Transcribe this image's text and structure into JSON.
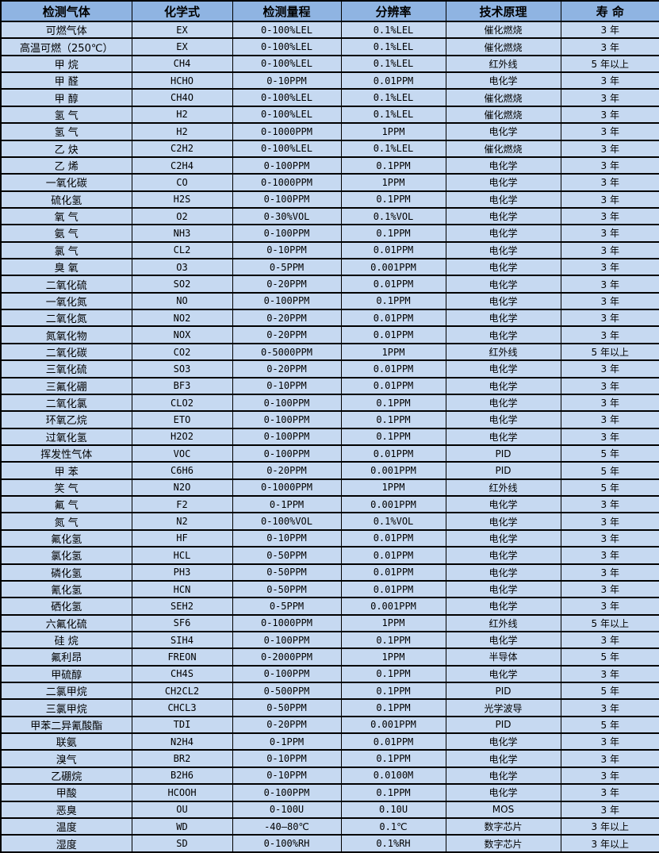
{
  "table": {
    "columns": [
      "检测气体",
      "化学式",
      "检测量程",
      "分辨率",
      "技术原理",
      "寿 命"
    ],
    "column_keys": [
      "gas-name",
      "formula",
      "range",
      "resolution",
      "principle",
      "lifespan"
    ],
    "rows": [
      [
        "可燃气体",
        "EX",
        "0-100%LEL",
        "0.1%LEL",
        "催化燃烧",
        "3 年"
      ],
      [
        "高温可燃（250℃）",
        "EX",
        "0-100%LEL",
        "0.1%LEL",
        "催化燃烧",
        "3 年"
      ],
      [
        "甲 烷",
        "CH4",
        "0-100%LEL",
        "0.1%LEL",
        "红外线",
        "5 年以上"
      ],
      [
        "甲 醛",
        "HCHO",
        "0-10PPM",
        "0.01PPM",
        "电化学",
        "3 年"
      ],
      [
        "甲 醇",
        "CH4O",
        "0-100%LEL",
        "0.1%LEL",
        "催化燃烧",
        "3 年"
      ],
      [
        "氢 气",
        "H2",
        "0-100%LEL",
        "0.1%LEL",
        "催化燃烧",
        "3 年"
      ],
      [
        "氢 气",
        "H2",
        "0-1000PPM",
        "1PPM",
        "电化学",
        "3 年"
      ],
      [
        "乙 炔",
        "C2H2",
        "0-100%LEL",
        "0.1%LEL",
        "催化燃烧",
        "3 年"
      ],
      [
        "乙 烯",
        "C2H4",
        "0-100PPM",
        "0.1PPM",
        "电化学",
        "3 年"
      ],
      [
        "一氧化碳",
        "CO",
        "0-1000PPM",
        "1PPM",
        "电化学",
        "3 年"
      ],
      [
        "硫化氢",
        "H2S",
        "0-100PPM",
        "0.1PPM",
        "电化学",
        "3 年"
      ],
      [
        "氧 气",
        "O2",
        "0-30%VOL",
        "0.1%VOL",
        "电化学",
        "3 年"
      ],
      [
        "氨 气",
        "NH3",
        "0-100PPM",
        "0.1PPM",
        "电化学",
        "3 年"
      ],
      [
        "氯 气",
        "CL2",
        "0-10PPM",
        "0.01PPM",
        "电化学",
        "3 年"
      ],
      [
        "臭 氧",
        "O3",
        "0-5PPM",
        "0.001PPM",
        "电化学",
        "3 年"
      ],
      [
        "二氧化硫",
        "SO2",
        "0-20PPM",
        "0.01PPM",
        "电化学",
        "3 年"
      ],
      [
        "一氧化氮",
        "NO",
        "0-100PPM",
        "0.1PPM",
        "电化学",
        "3 年"
      ],
      [
        "二氧化氮",
        "NO2",
        "0-20PPM",
        "0.01PPM",
        "电化学",
        "3 年"
      ],
      [
        "氮氧化物",
        "NOX",
        "0-20PPM",
        "0.01PPM",
        "电化学",
        "3 年"
      ],
      [
        "二氧化碳",
        "CO2",
        "0-5000PPM",
        "1PPM",
        "红外线",
        "5 年以上"
      ],
      [
        "三氧化硫",
        "SO3",
        "0-20PPM",
        "0.01PPM",
        "电化学",
        "3 年"
      ],
      [
        "三氟化硼",
        "BF3",
        "0-10PPM",
        "0.01PPM",
        "电化学",
        "3 年"
      ],
      [
        "二氧化氯",
        "CLO2",
        "0-100PPM",
        "0.1PPM",
        "电化学",
        "3 年"
      ],
      [
        "环氧乙烷",
        "ETO",
        "0-100PPM",
        "0.1PPM",
        "电化学",
        "3 年"
      ],
      [
        "过氧化氢",
        "H2O2",
        "0-100PPM",
        "0.1PPM",
        "电化学",
        "3 年"
      ],
      [
        "挥发性气体",
        "VOC",
        "0-100PPM",
        "0.01PPM",
        "PID",
        "5 年"
      ],
      [
        "甲 苯",
        "C6H6",
        "0-20PPM",
        "0.001PPM",
        "PID",
        "5 年"
      ],
      [
        "笑 气",
        "N2O",
        "0-1000PPM",
        "1PPM",
        "红外线",
        "5 年"
      ],
      [
        "氟 气",
        "F2",
        "0-1PPM",
        "0.001PPM",
        "电化学",
        "3 年"
      ],
      [
        "氮 气",
        "N2",
        "0-100%VOL",
        "0.1%VOL",
        "电化学",
        "3 年"
      ],
      [
        "氟化氢",
        "HF",
        "0-10PPM",
        "0.01PPM",
        "电化学",
        "3 年"
      ],
      [
        "氯化氢",
        "HCL",
        "0-50PPM",
        "0.01PPM",
        "电化学",
        "3 年"
      ],
      [
        "磷化氢",
        "PH3",
        "0-50PPM",
        "0.01PPM",
        "电化学",
        "3 年"
      ],
      [
        "氰化氢",
        "HCN",
        "0-50PPM",
        "0.01PPM",
        "电化学",
        "3 年"
      ],
      [
        "硒化氢",
        "SEH2",
        "0-5PPM",
        "0.001PPM",
        "电化学",
        "3 年"
      ],
      [
        "六氟化硫",
        "SF6",
        "0-1000PPM",
        "1PPM",
        "红外线",
        "5 年以上"
      ],
      [
        "硅 烷",
        "SIH4",
        "0-100PPM",
        "0.1PPM",
        "电化学",
        "3 年"
      ],
      [
        "氟利昂",
        "FREON",
        "0-2000PPM",
        "1PPM",
        "半导体",
        "5 年"
      ],
      [
        "甲硫醇",
        "CH4S",
        "0-100PPM",
        "0.1PPM",
        "电化学",
        "3 年"
      ],
      [
        "二氯甲烷",
        "CH2CL2",
        "0-500PPM",
        "0.1PPM",
        "PID",
        "5 年"
      ],
      [
        "三氯甲烷",
        "CHCL3",
        "0-50PPM",
        "0.1PPM",
        "光学波导",
        "3 年"
      ],
      [
        "甲苯二异氰酸酯",
        "TDI",
        "0-20PPM",
        "0.001PPM",
        "PID",
        "5 年"
      ],
      [
        "联氨",
        "N2H4",
        "0-1PPM",
        "0.01PPM",
        "电化学",
        "3 年"
      ],
      [
        "溴气",
        "BR2",
        "0-10PPM",
        "0.1PPM",
        "电化学",
        "3 年"
      ],
      [
        "乙硼烷",
        "B2H6",
        "0-10PPM",
        "0.0100M",
        "电化学",
        "3 年"
      ],
      [
        "甲酸",
        "HCOOH",
        "0-100PPM",
        "0.1PPM",
        "电化学",
        "3 年"
      ],
      [
        "恶臭",
        "OU",
        "0-100U",
        "0.10U",
        "MOS",
        "3 年"
      ],
      [
        "温度",
        "WD",
        "-40—80℃",
        "0.1℃",
        "数字芯片",
        "3 年以上"
      ],
      [
        "湿度",
        "SD",
        "0-100%RH",
        "0.1%RH",
        "数字芯片",
        "3 年以上"
      ]
    ]
  },
  "colors": {
    "header_bg": "#8FB4E2",
    "row_bg": "#C6D9F1",
    "border": "#000000",
    "text": "#000000"
  }
}
